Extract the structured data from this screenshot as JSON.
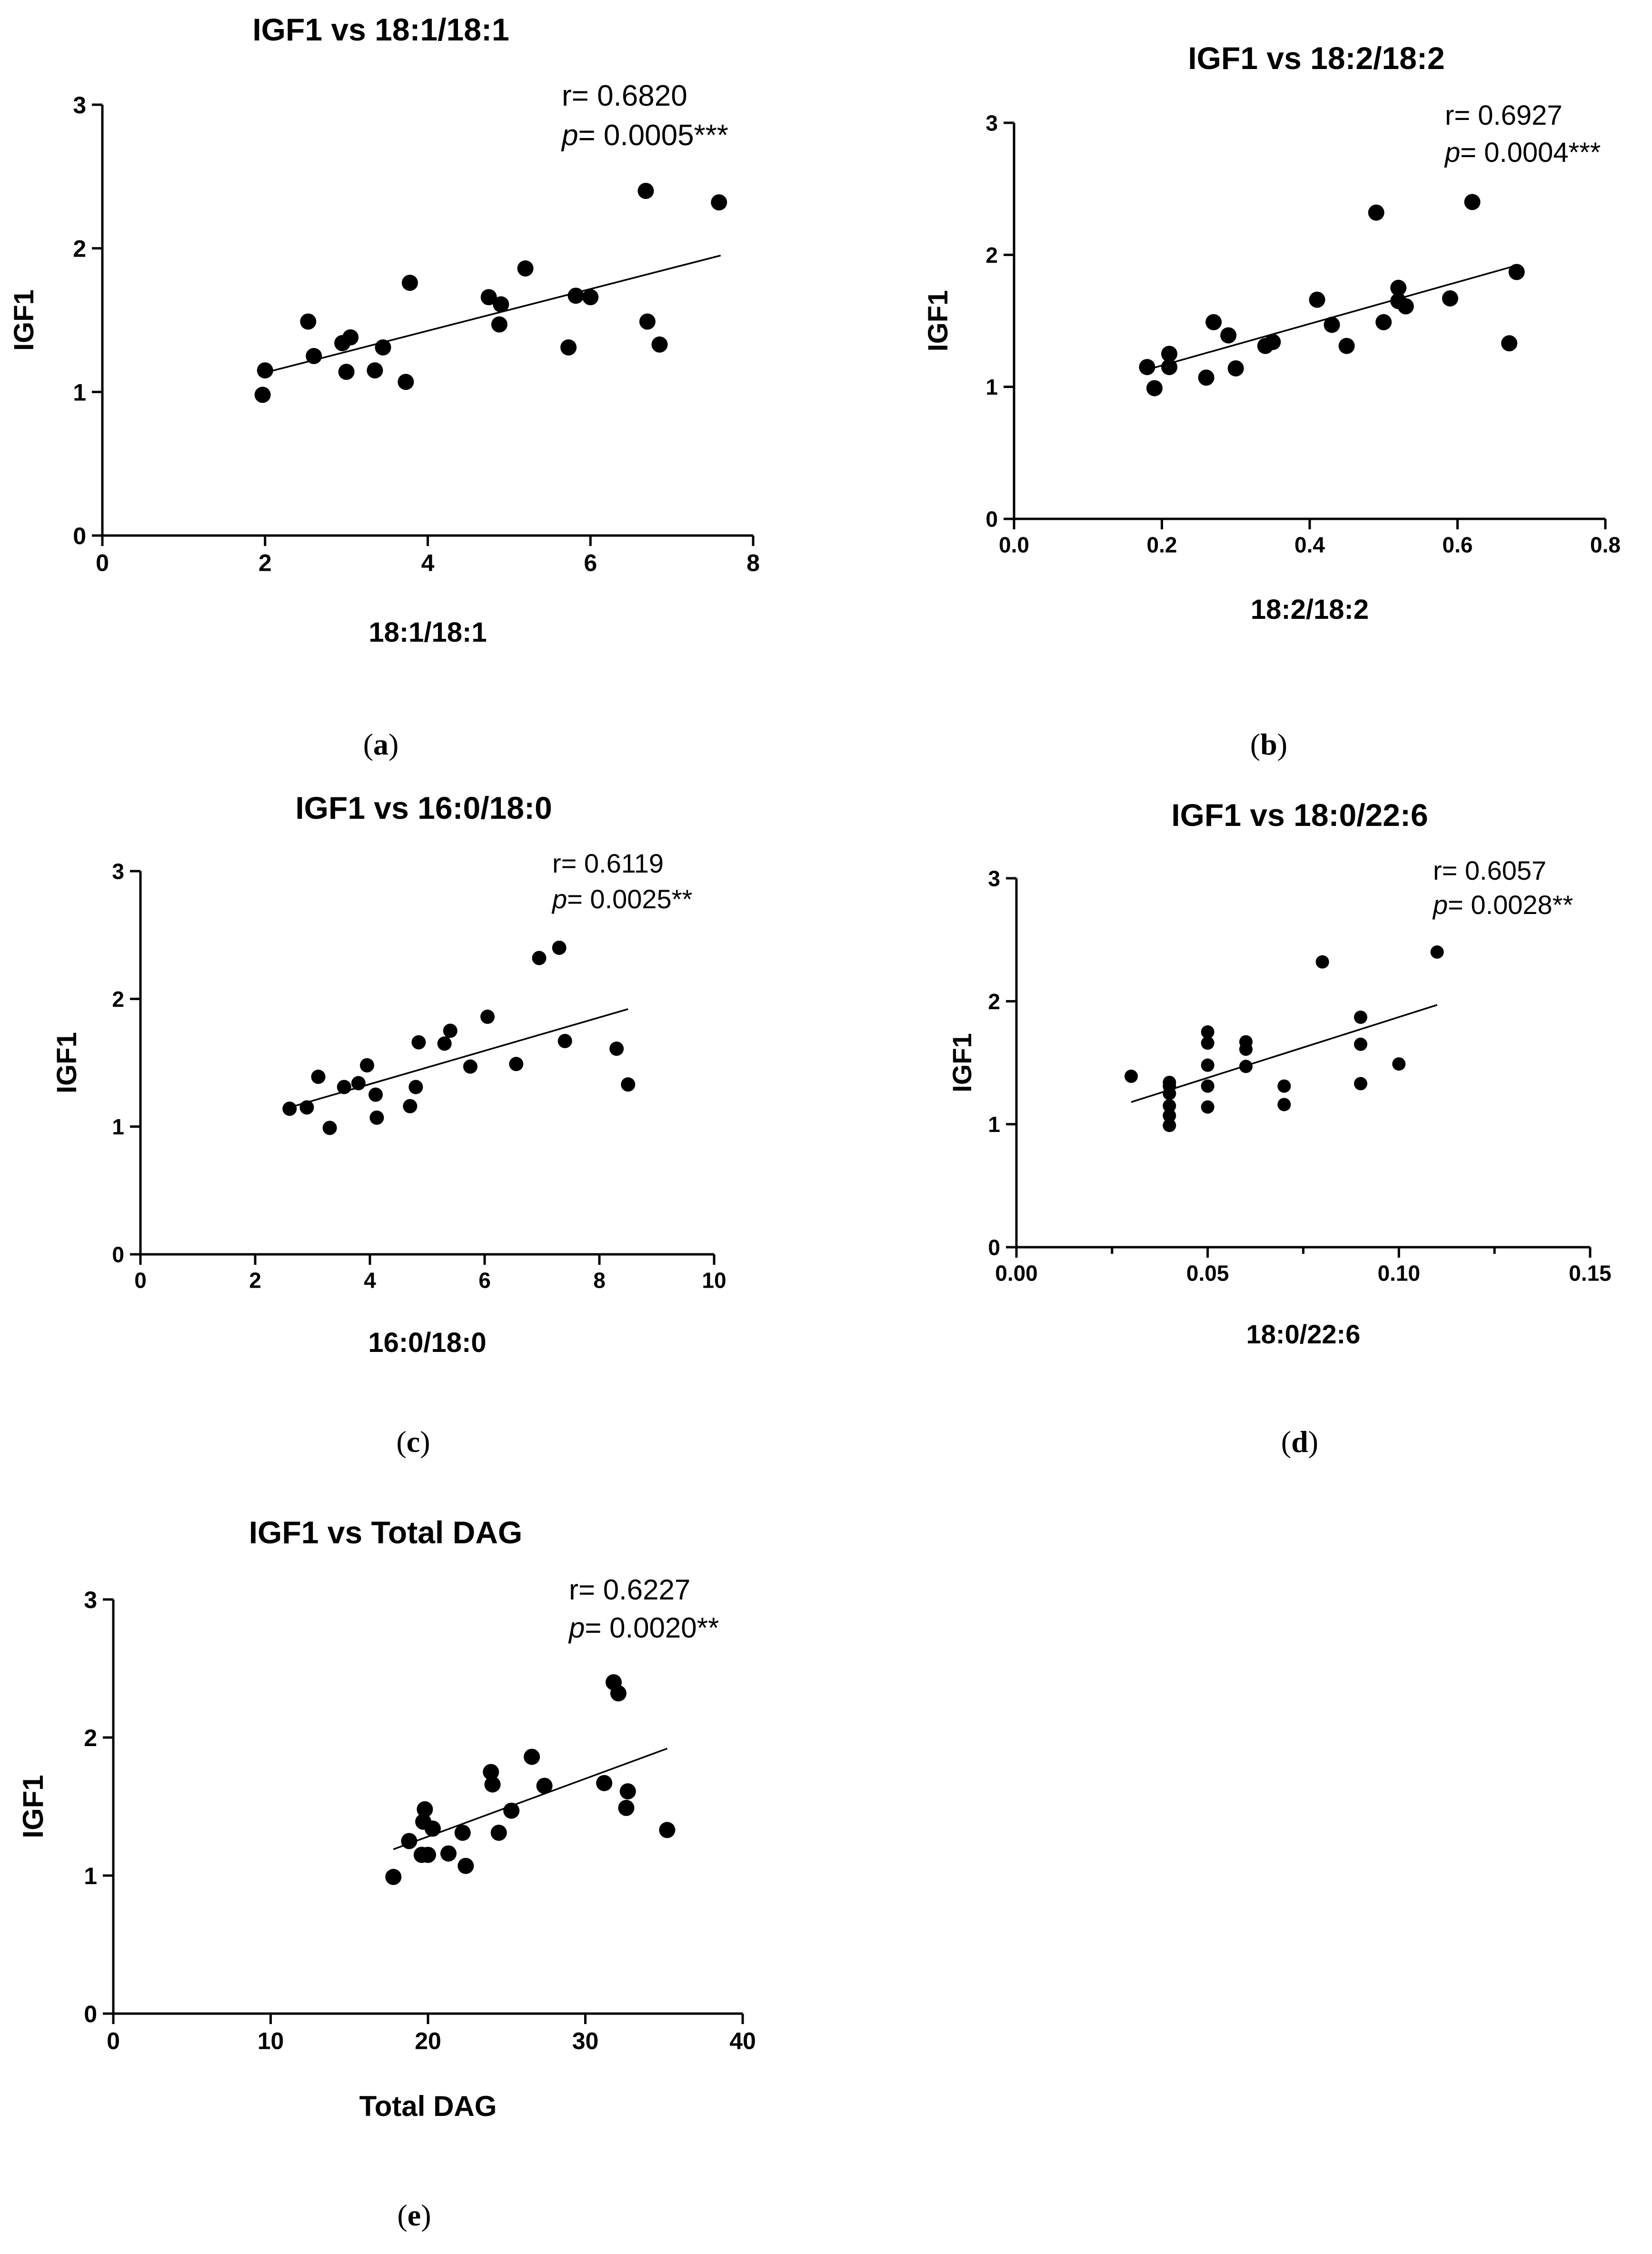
{
  "chart_data": [
    {
      "type": "scatter",
      "panel_label": "(a)",
      "caption_letter": "a",
      "title": "IGF1 vs 18:1/18:1",
      "xlabel": "18:1/18:1",
      "ylabel": "IGF1",
      "xlim": [
        0,
        8
      ],
      "ylim": [
        0,
        3
      ],
      "xticks": [
        0,
        2,
        4,
        6,
        8
      ],
      "xtick_labels": [
        "0",
        "2",
        "4",
        "6",
        "8"
      ],
      "yticks": [
        0,
        1,
        2,
        3
      ],
      "ytick_labels": [
        "0",
        "1",
        "2",
        "3"
      ],
      "r_text": "r= 0.6820",
      "p_prefix": "p",
      "p_value": "= 0.0005***",
      "fit_line": {
        "x": [
          1.97,
          7.6
        ],
        "y": [
          1.13,
          1.95
        ]
      },
      "points": {
        "x": [
          1.97,
          2.0,
          2.53,
          2.6,
          2.95,
          3.0,
          3.05,
          3.35,
          3.45,
          3.73,
          3.78,
          4.75,
          4.88,
          4.9,
          5.2,
          5.73,
          5.82,
          6.0,
          6.68,
          6.7,
          6.85,
          7.58
        ],
        "y": [
          0.98,
          1.15,
          1.49,
          1.25,
          1.34,
          1.14,
          1.38,
          1.15,
          1.31,
          1.07,
          1.76,
          1.66,
          1.47,
          1.61,
          1.86,
          1.31,
          1.67,
          1.66,
          2.4,
          1.49,
          1.33,
          2.32
        ]
      }
    },
    {
      "type": "scatter",
      "panel_label": "(b)",
      "caption_letter": "b",
      "title": "IGF1 vs 18:2/18:2",
      "xlabel": "18:2/18:2",
      "ylabel": "IGF1",
      "xlim": [
        0,
        0.8
      ],
      "ylim": [
        0,
        3
      ],
      "xticks": [
        0,
        0.2,
        0.4,
        0.6,
        0.8
      ],
      "xtick_labels": [
        "0.0",
        "0.2",
        "0.4",
        "0.6",
        "0.8"
      ],
      "yticks": [
        0,
        1,
        2,
        3
      ],
      "ytick_labels": [
        "0",
        "1",
        "2",
        "3"
      ],
      "r_text": "r= 0.6927",
      "p_prefix": "p",
      "p_value": "= 0.0004***",
      "fit_line": {
        "x": [
          0.18,
          0.68
        ],
        "y": [
          1.13,
          1.92
        ]
      },
      "points": {
        "x": [
          0.18,
          0.19,
          0.21,
          0.21,
          0.26,
          0.27,
          0.29,
          0.3,
          0.34,
          0.35,
          0.41,
          0.43,
          0.45,
          0.49,
          0.5,
          0.52,
          0.52,
          0.53,
          0.59,
          0.62,
          0.67,
          0.68
        ],
        "y": [
          1.15,
          0.99,
          1.15,
          1.25,
          1.07,
          1.49,
          1.39,
          1.14,
          1.31,
          1.34,
          1.66,
          1.47,
          1.31,
          2.32,
          1.49,
          1.75,
          1.65,
          1.61,
          1.67,
          2.4,
          1.33,
          1.87
        ]
      }
    },
    {
      "type": "scatter",
      "panel_label": "(c)",
      "caption_letter": "c",
      "title": "IGF1 vs 16:0/18:0",
      "xlabel": "16:0/18:0",
      "ylabel": "IGF1",
      "xlim": [
        0,
        10
      ],
      "ylim": [
        0,
        3
      ],
      "xticks": [
        0,
        2,
        4,
        6,
        8,
        10
      ],
      "xtick_labels": [
        "0",
        "2",
        "4",
        "6",
        "8",
        "10"
      ],
      "yticks": [
        0,
        1,
        2,
        3
      ],
      "ytick_labels": [
        "0",
        "1",
        "2",
        "3"
      ],
      "r_text": "r= 0.6119",
      "p_prefix": "p",
      "p_value": "= 0.0025**",
      "fit_line": {
        "x": [
          2.6,
          8.5
        ],
        "y": [
          1.15,
          1.92
        ]
      },
      "points": {
        "x": [
          2.6,
          2.9,
          3.1,
          3.3,
          3.55,
          3.8,
          3.95,
          4.1,
          4.12,
          4.7,
          4.8,
          4.85,
          5.3,
          5.4,
          5.75,
          6.05,
          6.55,
          6.95,
          7.3,
          7.4,
          8.3,
          8.5
        ],
        "y": [
          1.14,
          1.15,
          1.39,
          0.99,
          1.31,
          1.34,
          1.48,
          1.25,
          1.07,
          1.16,
          1.31,
          1.66,
          1.65,
          1.75,
          1.47,
          1.86,
          1.49,
          2.32,
          2.4,
          1.67,
          1.61,
          1.33
        ]
      }
    },
    {
      "type": "scatter",
      "panel_label": "(d)",
      "caption_letter": "d",
      "title": "IGF1 vs 18:0/22:6",
      "xlabel": "18:0/22:6",
      "ylabel": "IGF1",
      "xlim": [
        0,
        0.15
      ],
      "ylim": [
        0,
        3
      ],
      "xticks": [
        0,
        0.05,
        0.1,
        0.15
      ],
      "xtick_labels": [
        "0.00",
        "0.05",
        "0.10",
        "0.15"
      ],
      "minor_xticks": [
        0.025,
        0.075,
        0.125
      ],
      "yticks": [
        0,
        1,
        2,
        3
      ],
      "ytick_labels": [
        "0",
        "1",
        "2",
        "3"
      ],
      "r_text": "r= 0.6057",
      "p_prefix": "p",
      "p_value": "= 0.0028**",
      "fit_line": {
        "x": [
          0.03,
          0.11
        ],
        "y": [
          1.18,
          1.97
        ]
      },
      "points": {
        "x": [
          0.03,
          0.04,
          0.04,
          0.04,
          0.04,
          0.04,
          0.04,
          0.05,
          0.05,
          0.05,
          0.05,
          0.05,
          0.06,
          0.06,
          0.06,
          0.07,
          0.07,
          0.08,
          0.09,
          0.09,
          0.09,
          0.1,
          0.11
        ],
        "y": [
          1.39,
          0.99,
          1.07,
          1.15,
          1.25,
          1.31,
          1.34,
          1.14,
          1.31,
          1.48,
          1.66,
          1.75,
          1.47,
          1.61,
          1.67,
          1.16,
          1.31,
          2.32,
          1.33,
          1.65,
          1.87,
          1.49,
          2.4
        ]
      }
    },
    {
      "type": "scatter",
      "panel_label": "(e)",
      "caption_letter": "e",
      "title": "IGF1 vs Total DAG",
      "xlabel": "Total DAG",
      "ylabel": "IGF1",
      "xlim": [
        0,
        40
      ],
      "ylim": [
        0,
        3
      ],
      "xticks": [
        0,
        10,
        20,
        30,
        40
      ],
      "xtick_labels": [
        "0",
        "10",
        "20",
        "30",
        "40"
      ],
      "yticks": [
        0,
        1,
        2,
        3
      ],
      "ytick_labels": [
        "0",
        "1",
        "2",
        "3"
      ],
      "r_text": "r= 0.6227",
      "p_prefix": "p",
      "p_value": "= 0.0020**",
      "fit_line": {
        "x": [
          17.8,
          35.2
        ],
        "y": [
          1.19,
          1.92
        ]
      },
      "points": {
        "x": [
          17.8,
          18.8,
          19.6,
          19.7,
          19.8,
          20.0,
          20.3,
          21.3,
          22.2,
          22.4,
          24.0,
          24.1,
          24.5,
          25.3,
          26.6,
          27.4,
          31.2,
          31.8,
          32.1,
          32.6,
          32.7,
          35.2
        ],
        "y": [
          0.99,
          1.25,
          1.15,
          1.39,
          1.48,
          1.15,
          1.34,
          1.16,
          1.31,
          1.07,
          1.75,
          1.66,
          1.31,
          1.47,
          1.86,
          1.65,
          1.67,
          2.4,
          2.32,
          1.49,
          1.61,
          1.33
        ]
      }
    }
  ]
}
